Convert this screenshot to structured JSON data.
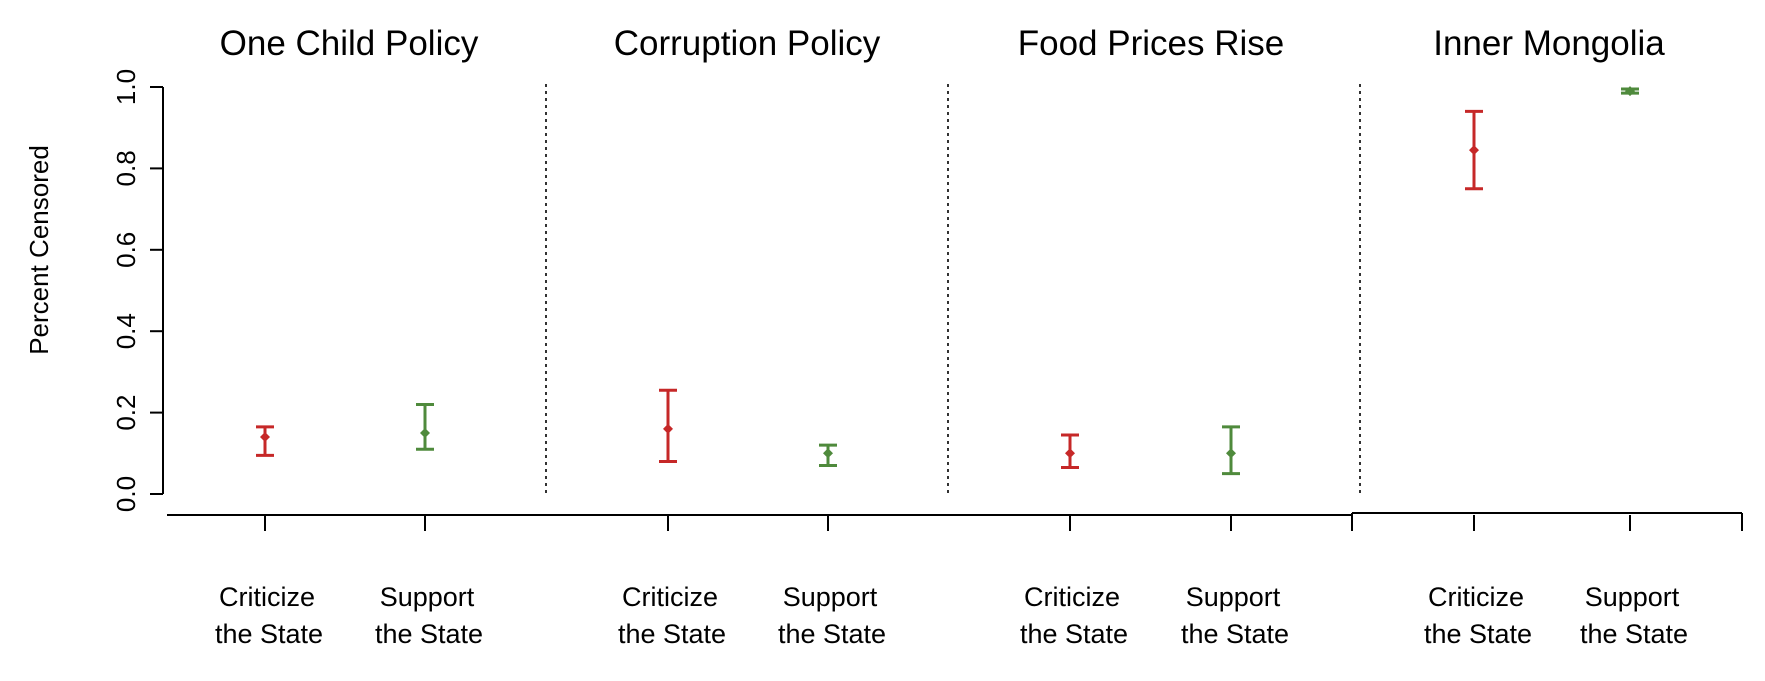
{
  "chart_data": {
    "type": "scatter",
    "ylabel": "Percent Censored",
    "ylim": [
      0.0,
      1.0
    ],
    "yticks": [
      "0.0",
      "0.2",
      "0.4",
      "0.6",
      "0.8",
      "1.0"
    ],
    "category_lines": [
      {
        "line1": "Criticize",
        "line2": "the State"
      },
      {
        "line1": "Support",
        "line2": "the State"
      }
    ],
    "colors": {
      "criticize": "#c62828",
      "support": "#4f8a3c"
    },
    "panels": [
      {
        "title": "One Child Policy",
        "points": [
          {
            "category": "Criticize the State",
            "value": 0.14,
            "lower": 0.095,
            "upper": 0.165
          },
          {
            "category": "Support the State",
            "value": 0.15,
            "lower": 0.11,
            "upper": 0.22
          }
        ]
      },
      {
        "title": "Corruption Policy",
        "points": [
          {
            "category": "Criticize the State",
            "value": 0.16,
            "lower": 0.08,
            "upper": 0.255
          },
          {
            "category": "Support the State",
            "value": 0.1,
            "lower": 0.07,
            "upper": 0.12
          }
        ]
      },
      {
        "title": "Food Prices Rise",
        "points": [
          {
            "category": "Criticize the State",
            "value": 0.1,
            "lower": 0.065,
            "upper": 0.145
          },
          {
            "category": "Support the State",
            "value": 0.1,
            "lower": 0.05,
            "upper": 0.165
          }
        ]
      },
      {
        "title": "Inner Mongolia",
        "points": [
          {
            "category": "Criticize the State",
            "value": 0.845,
            "lower": 0.75,
            "upper": 0.94
          },
          {
            "category": "Support the State",
            "value": 0.99,
            "lower": 0.985,
            "upper": 0.995
          }
        ]
      }
    ]
  }
}
